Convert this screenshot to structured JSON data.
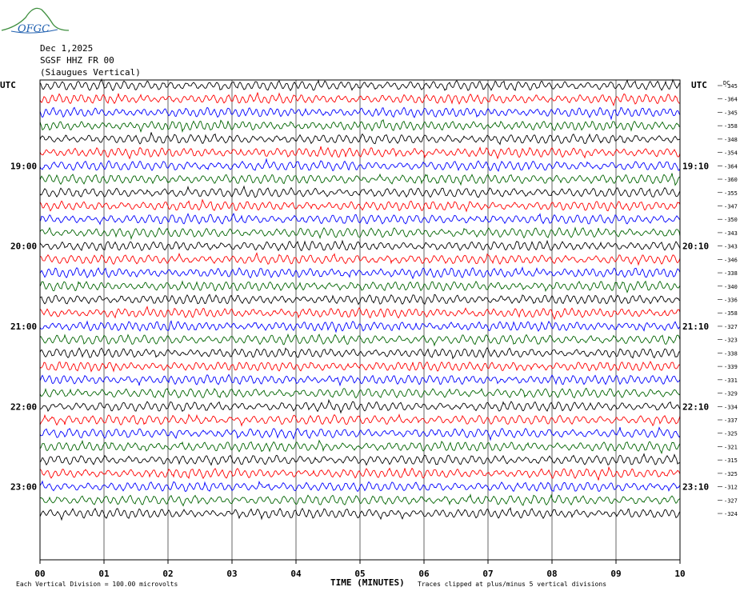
{
  "logo_text": "OFGC",
  "header": {
    "date": "Dec 1,2025",
    "station": "SGSF HHZ FR 00",
    "location": "(Siaugues Vertical)"
  },
  "chart_data": {
    "type": "line",
    "title": "SGSF HHZ FR 00",
    "left_axis_label": "UTC",
    "right_axis_label": "UTC",
    "dc_label": "DC",
    "xlabel": "TIME (MINUTES)",
    "x_ticks": [
      "00",
      "01",
      "02",
      "03",
      "04",
      "05",
      "06",
      "07",
      "08",
      "09",
      "10"
    ],
    "xlim": [
      0,
      10
    ],
    "left_time_labels": [
      {
        "row": 6,
        "text": "19:00"
      },
      {
        "row": 12,
        "text": "20:00"
      },
      {
        "row": 18,
        "text": "21:00"
      },
      {
        "row": 24,
        "text": "22:00"
      },
      {
        "row": 30,
        "text": "23:00"
      }
    ],
    "right_time_labels": [
      {
        "row": 6,
        "text": "19:10"
      },
      {
        "row": 12,
        "text": "20:10"
      },
      {
        "row": 18,
        "text": "21:10"
      },
      {
        "row": 24,
        "text": "22:10"
      },
      {
        "row": 30,
        "text": "23:10"
      }
    ],
    "dc_offsets": [
      -345,
      -364,
      -345,
      -358,
      -348,
      -354,
      -364,
      -360,
      -355,
      -347,
      -350,
      -343,
      -343,
      -346,
      -338,
      -340,
      -336,
      -358,
      -327,
      -323,
      -338,
      -339,
      -331,
      -329,
      -334,
      -337,
      -325,
      -321,
      -315,
      -325,
      -312,
      -327,
      -324
    ],
    "trace_colors": [
      "#000000",
      "#ff0000",
      "#0000ff",
      "#006400"
    ],
    "grid": true,
    "footer_left": "Each Vertical Division =  100.00 microvolts",
    "footer_right": "Traces clipped at plus/minus 5 vertical divisions"
  }
}
